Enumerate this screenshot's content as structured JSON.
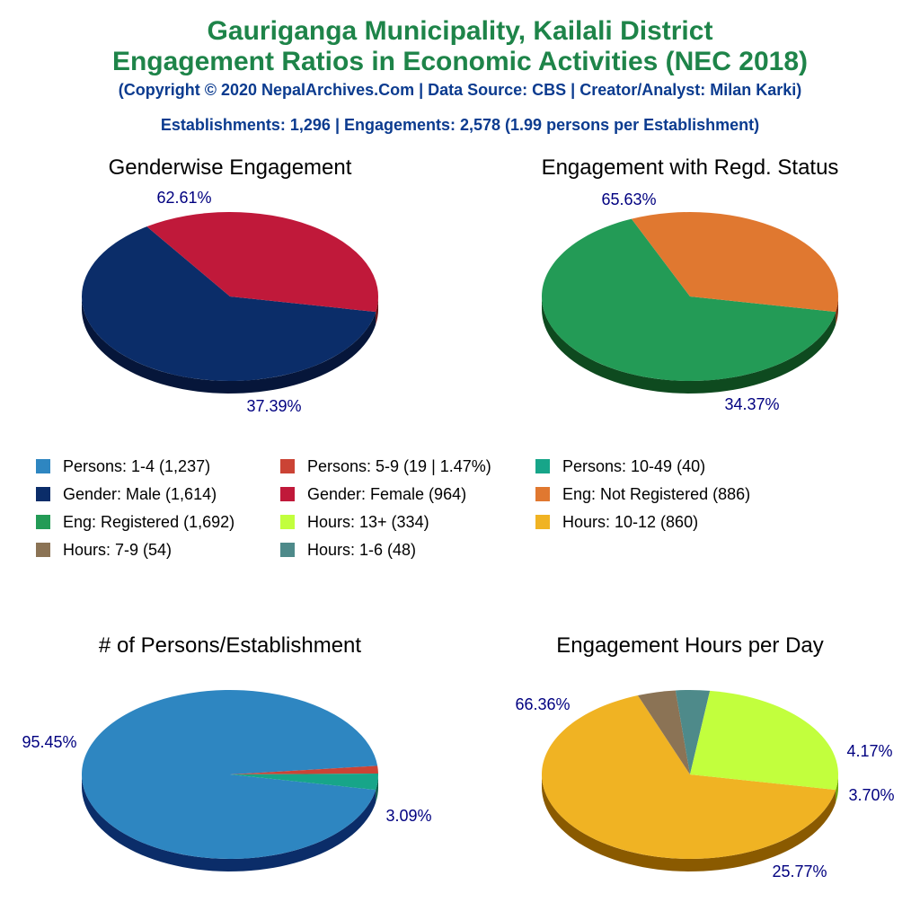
{
  "header": {
    "title_line1": "Gauriganga Municipality, Kailali District",
    "title_line2": "Engagement Ratios in Economic Activities (NEC 2018)",
    "copyright": "(Copyright © 2020 NepalArchives.Com | Data Source: CBS | Creator/Analyst: Milan Karki)",
    "summary": "Establishments: 1,296 | Engagements: 2,578 (1.99 persons per Establishment)"
  },
  "colors": {
    "title": "#1e8449",
    "subtitle": "#0b3b8f",
    "label": "#000080"
  },
  "legend": [
    {
      "label": "Persons: 1-4 (1,237)",
      "color": "#2e86c1"
    },
    {
      "label": "Persons: 5-9 (19 | 1.47%)",
      "color": "#cb4335"
    },
    {
      "label": "Persons: 10-49 (40)",
      "color": "#17a589"
    },
    {
      "label": "Gender: Male (1,614)",
      "color": "#0b2d69"
    },
    {
      "label": "Gender: Female (964)",
      "color": "#c0193a"
    },
    {
      "label": "Eng: Not Registered (886)",
      "color": "#e07830"
    },
    {
      "label": "Eng: Registered (1,692)",
      "color": "#239b56"
    },
    {
      "label": "Hours: 13+ (334)",
      "color": "#c2ff3d"
    },
    {
      "label": "Hours: 10-12 (860)",
      "color": "#f0b323"
    },
    {
      "label": "Hours: 7-9 (54)",
      "color": "#8b7355"
    },
    {
      "label": "Hours: 1-6 (48)",
      "color": "#4e8a8a"
    }
  ],
  "chart_data": [
    {
      "type": "pie",
      "title": "Genderwise Engagement",
      "slices": [
        {
          "name": "Gender: Male",
          "value": 1614,
          "percent": 62.61,
          "label": "62.61%",
          "color": "#0b2d69",
          "side": "#06163a"
        },
        {
          "name": "Gender: Female",
          "value": 964,
          "percent": 37.39,
          "label": "37.39%",
          "color": "#c0193a",
          "side": "#6b0c12"
        }
      ]
    },
    {
      "type": "pie",
      "title": "Engagement with Regd. Status",
      "slices": [
        {
          "name": "Eng: Registered",
          "value": 1692,
          "percent": 65.63,
          "label": "65.63%",
          "color": "#239b56",
          "side": "#0e4a1f"
        },
        {
          "name": "Eng: Not Registered",
          "value": 886,
          "percent": 34.37,
          "label": "34.37%",
          "color": "#e07830",
          "side": "#7a2a0a"
        }
      ]
    },
    {
      "type": "pie",
      "title": "# of Persons/Establishment",
      "slices": [
        {
          "name": "Persons: 1-4",
          "value": 1237,
          "percent": 95.45,
          "label": "95.45%",
          "color": "#2e86c1",
          "side": "#0b2d69"
        },
        {
          "name": "Persons: 5-9",
          "value": 19,
          "percent": 1.47,
          "label": "",
          "color": "#cb4335",
          "side": "#7a1a10"
        },
        {
          "name": "Persons: 10-49",
          "value": 40,
          "percent": 3.09,
          "label": "3.09%",
          "color": "#17a589",
          "side": "#0b5a48"
        }
      ]
    },
    {
      "type": "pie",
      "title": "Engagement Hours per Day",
      "slices": [
        {
          "name": "Hours: 10-12",
          "value": 860,
          "percent": 66.36,
          "label": "66.36%",
          "color": "#f0b323",
          "side": "#8a5a00"
        },
        {
          "name": "Hours: 7-9",
          "value": 54,
          "percent": 4.17,
          "label": "4.17%",
          "color": "#8b7355",
          "side": "#4a3a20"
        },
        {
          "name": "Hours: 1-6",
          "value": 48,
          "percent": 3.7,
          "label": "3.70%",
          "color": "#4e8a8a",
          "side": "#244848"
        },
        {
          "name": "Hours: 13+",
          "value": 334,
          "percent": 25.77,
          "label": "25.77%",
          "color": "#c2ff3d",
          "side": "#6aa300"
        }
      ]
    }
  ]
}
